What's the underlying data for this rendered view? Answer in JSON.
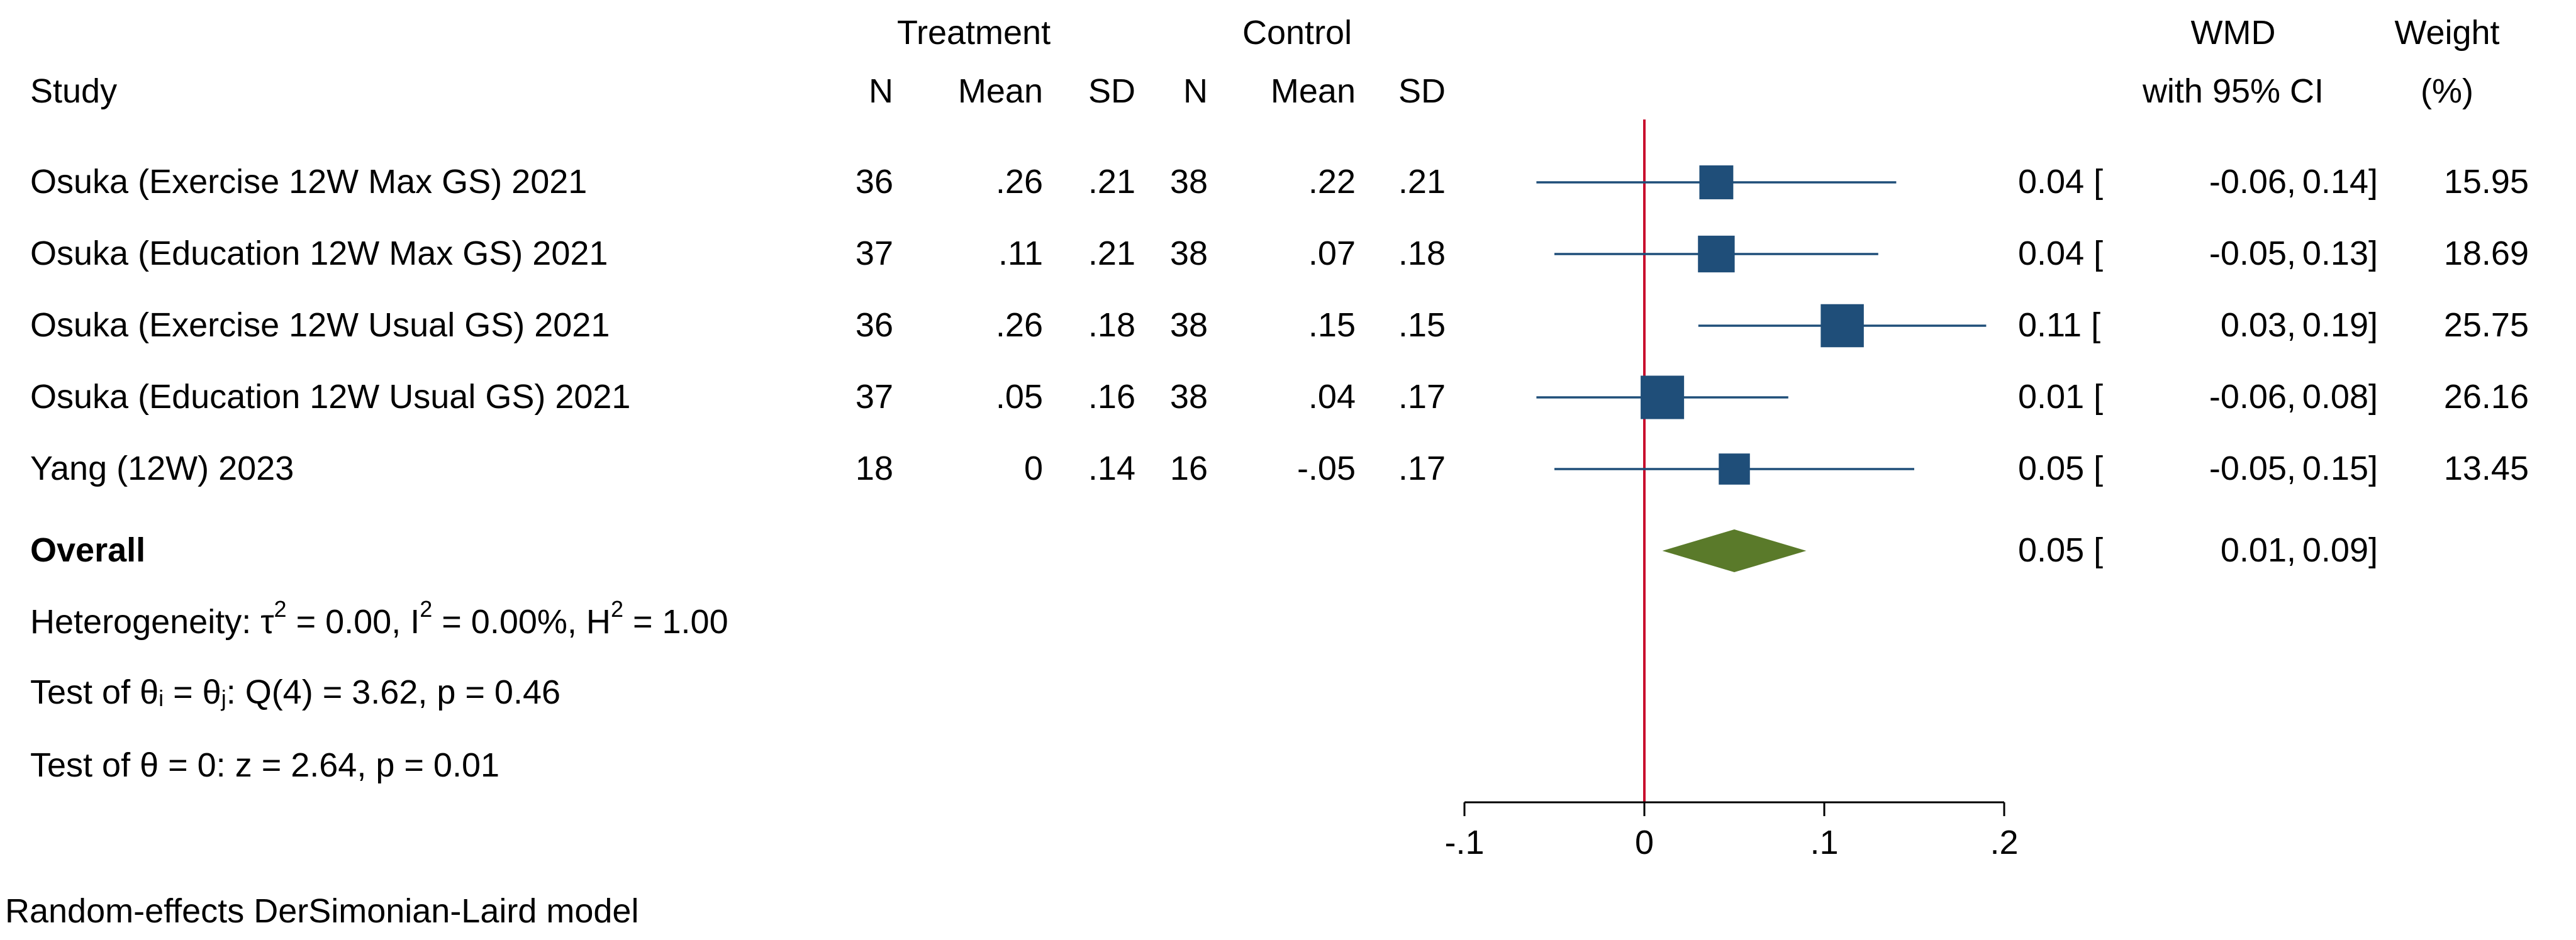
{
  "headers": {
    "treatment": "Treatment",
    "control": "Control",
    "study": "Study",
    "n": "N",
    "mean": "Mean",
    "sd": "SD",
    "wmd": "WMD",
    "ci": "with 95% CI",
    "weight": "Weight",
    "weight_unit": "(%)"
  },
  "rows": [
    {
      "study": "Osuka  (Exercise 12W Max GS) 2021",
      "t_n": "36",
      "t_mean": ".26",
      "t_sd": ".21",
      "c_n": "38",
      "c_mean": ".22",
      "c_sd": ".21",
      "wmd": "0.04 [",
      "lo": "-0.06,",
      "hi": "0.14]",
      "weight": "15.95"
    },
    {
      "study": "Osuka (Education 12W Max GS) 2021",
      "t_n": "37",
      "t_mean": ".11",
      "t_sd": ".21",
      "c_n": "38",
      "c_mean": ".07",
      "c_sd": ".18",
      "wmd": "0.04 [",
      "lo": "-0.05,",
      "hi": "0.13]",
      "weight": "18.69"
    },
    {
      "study": "Osuka  (Exercise 12W Usual GS) 2021",
      "t_n": "36",
      "t_mean": ".26",
      "t_sd": ".18",
      "c_n": "38",
      "c_mean": ".15",
      "c_sd": ".15",
      "wmd": "0.11 [",
      "lo": "0.03,",
      "hi": "0.19]",
      "weight": "25.75"
    },
    {
      "study": "Osuka (Education 12W Usual GS) 2021",
      "t_n": "37",
      "t_mean": ".05",
      "t_sd": ".16",
      "c_n": "38",
      "c_mean": ".04",
      "c_sd": ".17",
      "wmd": "0.01 [",
      "lo": "-0.06,",
      "hi": "0.08]",
      "weight": "26.16"
    },
    {
      "study": "Yang (12W) 2023",
      "t_n": "18",
      "t_mean": "0",
      "t_sd": ".14",
      "c_n": "16",
      "c_mean": "-.05",
      "c_sd": ".17",
      "wmd": "0.05 [",
      "lo": "-0.05,",
      "hi": "0.15]",
      "weight": "13.45"
    }
  ],
  "overall": {
    "label": "Overall",
    "wmd": "0.05 [",
    "lo": "0.01,",
    "hi": "0.09]"
  },
  "stats": {
    "het_a": "Heterogeneity: τ",
    "het_b": " = 0.00, I",
    "het_c": " = 0.00%, H",
    "het_d": " = 1.00",
    "sq": "2",
    "q_a": "Test of θ",
    "q_b": " = θ",
    "q_c": ": Q(4) = 3.62, p = 0.46",
    "sub_i": "i",
    "sub_j": "j",
    "z": "Test of θ = 0: z = 2.64, p = 0.01"
  },
  "footer": "Random-effects DerSimonian-Laird model",
  "chart_data": {
    "type": "forest",
    "xlim": [
      -0.1,
      0.2
    ],
    "ticks": [
      -0.1,
      0,
      0.1,
      0.2
    ],
    "tick_labels": [
      "-.1",
      "0",
      ".1",
      ".2"
    ],
    "null_line": 0,
    "studies": [
      {
        "label": "Osuka  (Exercise 12W Max GS) 2021",
        "est": 0.04,
        "lo": -0.06,
        "hi": 0.14,
        "weight": 15.95
      },
      {
        "label": "Osuka (Education 12W Max GS) 2021",
        "est": 0.04,
        "lo": -0.05,
        "hi": 0.13,
        "weight": 18.69
      },
      {
        "label": "Osuka  (Exercise 12W Usual GS) 2021",
        "est": 0.11,
        "lo": 0.03,
        "hi": 0.19,
        "weight": 25.75
      },
      {
        "label": "Osuka (Education 12W Usual GS) 2021",
        "est": 0.01,
        "lo": -0.06,
        "hi": 0.08,
        "weight": 26.16
      },
      {
        "label": "Yang (12W) 2023",
        "est": 0.05,
        "lo": -0.05,
        "hi": 0.15,
        "weight": 13.45
      }
    ],
    "overall": {
      "est": 0.05,
      "lo": 0.01,
      "hi": 0.09
    },
    "colors": {
      "marker": "#1f4e79",
      "line": "#1f4e79",
      "diamond": "#5a7a2a",
      "null_line": "#c8102e",
      "axis": "#000000"
    }
  }
}
